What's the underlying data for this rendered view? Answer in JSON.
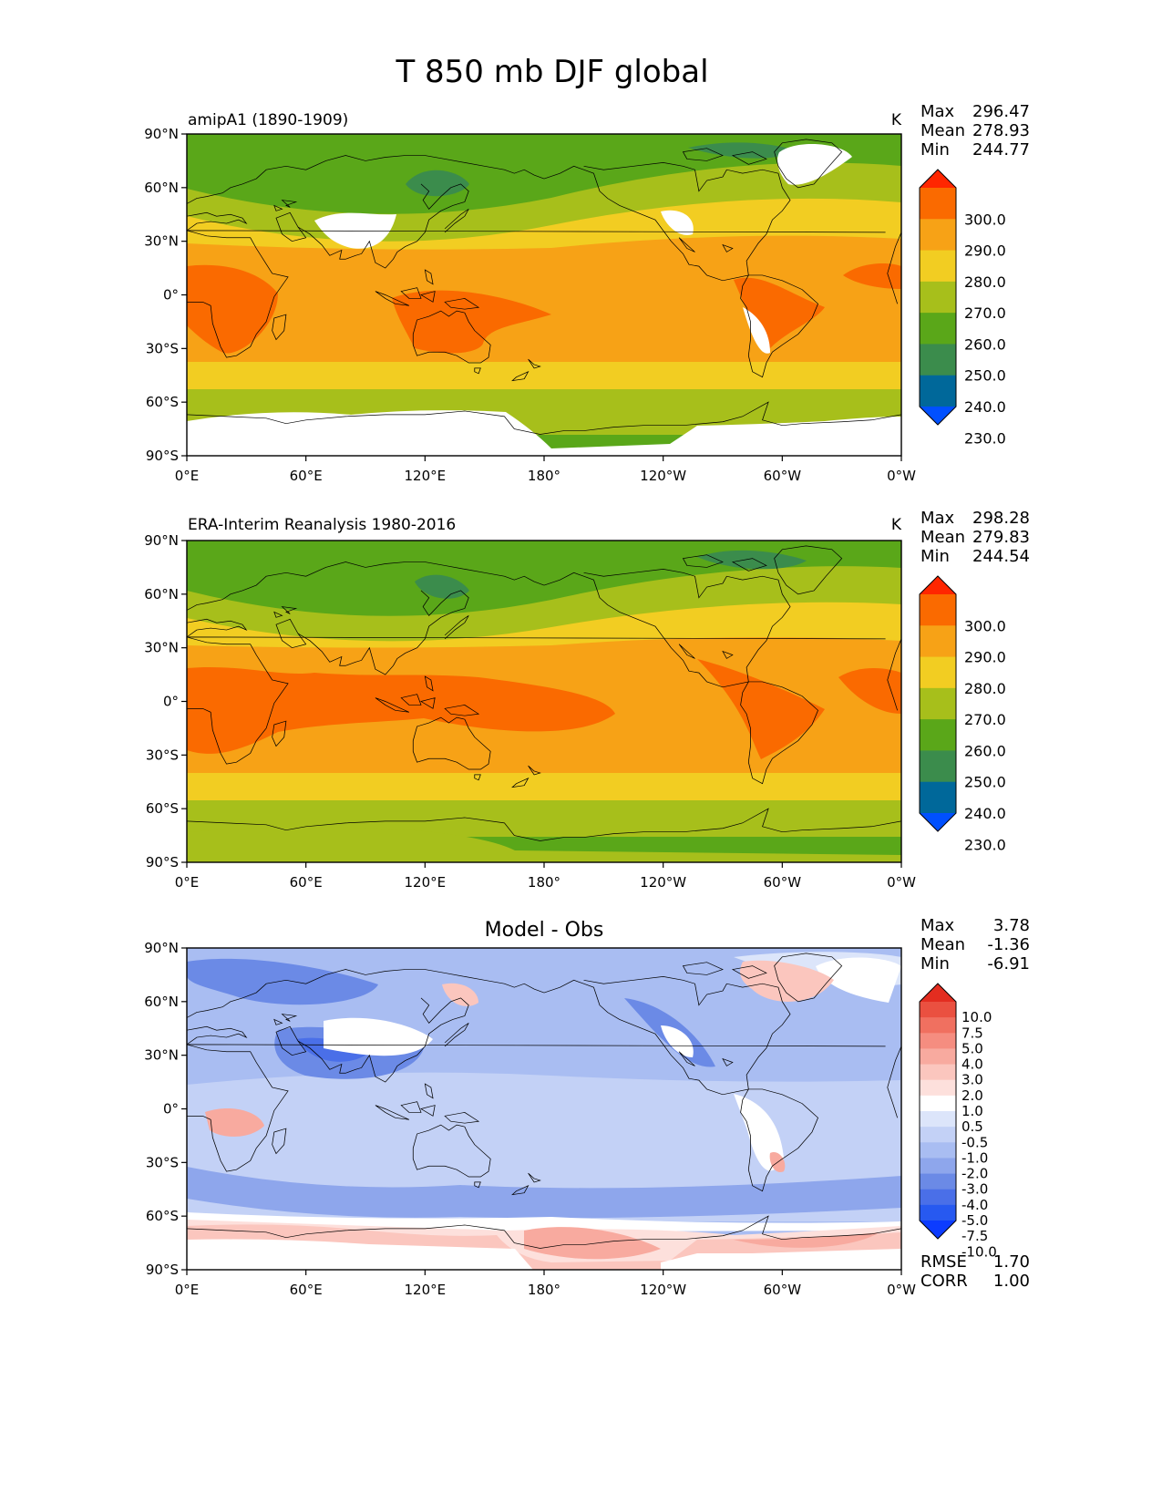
{
  "title": "T 850 mb DJF global",
  "axes": {
    "lon_ticks": [
      "0°E",
      "60°E",
      "120°E",
      "180°",
      "120°W",
      "60°W",
      "0°W"
    ],
    "lat_ticks": [
      "90°N",
      "60°N",
      "30°N",
      "0°",
      "30°S",
      "60°S",
      "90°S"
    ]
  },
  "colors": {
    "temperature_levels": [
      "#0050ff",
      "#00689a",
      "#3b8c4c",
      "#5aa719",
      "#a7bf1b",
      "#f2cd22",
      "#f7a216",
      "#fa6a00",
      "#ff2600"
    ],
    "difference_levels": [
      "#0c3cff",
      "#2759f0",
      "#4a6fe8",
      "#6b8ae6",
      "#8ea6ec",
      "#a9bdf2",
      "#c3d1f6",
      "#dce5fa",
      "#ffffff",
      "#fde0dc",
      "#fbc6be",
      "#f8aa9f",
      "#f58d80",
      "#f07060",
      "#ea5040",
      "#e32d20"
    ],
    "missing": "#ffffff",
    "coastline": "#000000"
  },
  "panels": [
    {
      "subtitle": "amipA1 (1890-1909)",
      "units": "K",
      "stats": [
        {
          "label": "Max",
          "value": "296.47"
        },
        {
          "label": "Mean",
          "value": "278.93"
        },
        {
          "label": "Min",
          "value": "244.77"
        }
      ],
      "colorbar_labels": [
        "300.0",
        "290.0",
        "280.0",
        "270.0",
        "260.0",
        "250.0",
        "240.0",
        "230.0"
      ]
    },
    {
      "subtitle": "ERA-Interim Reanalysis 1980-2016",
      "units": "K",
      "stats": [
        {
          "label": "Max",
          "value": "298.28"
        },
        {
          "label": "Mean",
          "value": "279.83"
        },
        {
          "label": "Min",
          "value": "244.54"
        }
      ],
      "colorbar_labels": [
        "300.0",
        "290.0",
        "280.0",
        "270.0",
        "260.0",
        "250.0",
        "240.0",
        "230.0"
      ]
    },
    {
      "title": "Model - Obs",
      "stats": [
        {
          "label": "Max",
          "value": "3.78"
        },
        {
          "label": "Mean",
          "value": "-1.36"
        },
        {
          "label": "Min",
          "value": "-6.91"
        }
      ],
      "colorbar_labels": [
        "10.0",
        "7.5",
        "5.0",
        "4.0",
        "3.0",
        "2.0",
        "1.0",
        "0.5",
        "-0.5",
        "-1.0",
        "-2.0",
        "-3.0",
        "-4.0",
        "-5.0",
        "-7.5",
        "-10.0"
      ],
      "metrics": [
        {
          "label": "RMSE",
          "value": "1.70"
        },
        {
          "label": "CORR",
          "value": "1.00"
        }
      ]
    }
  ]
}
